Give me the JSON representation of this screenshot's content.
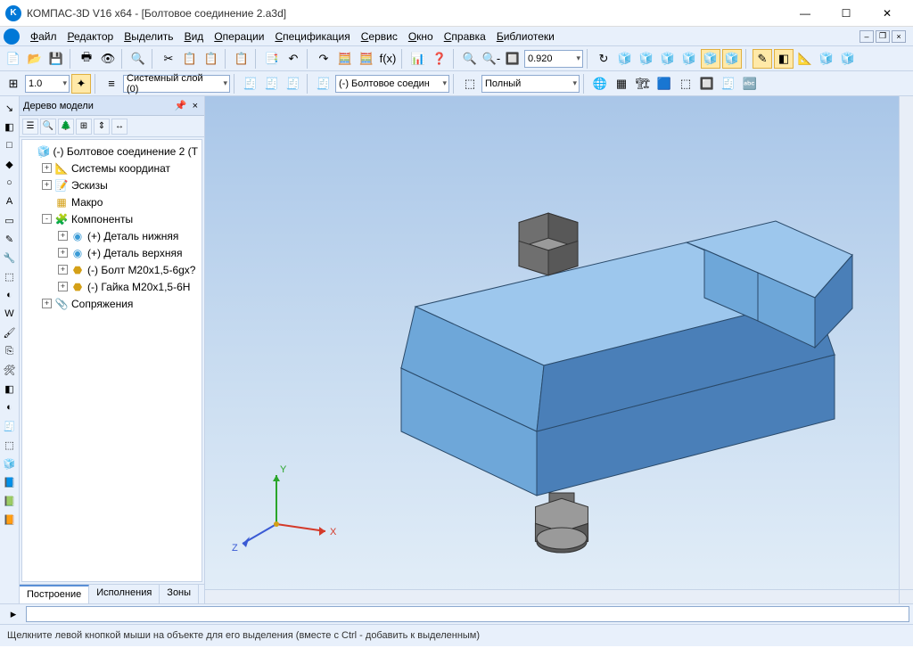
{
  "window": {
    "title": "КОМПАС-3D V16  x64 - [Болтовое соединение 2.a3d]",
    "min_glyph": "—",
    "max_glyph": "☐",
    "close_glyph": "✕"
  },
  "menu": {
    "items": [
      "Файл",
      "Редактор",
      "Выделить",
      "Вид",
      "Операции",
      "Спецификация",
      "Сервис",
      "Окно",
      "Справка",
      "Библиотеки"
    ]
  },
  "toolbar1": {
    "zoom_value": "0.920",
    "btns_a": [
      "📄",
      "📂",
      "💾",
      "🖶",
      "👁",
      "🔍",
      "✂",
      "📋",
      "📋",
      "📋",
      "📑",
      "↶",
      "↷",
      "🧮",
      "🧮",
      "f(x)",
      "📊",
      "❓",
      "↖"
    ],
    "btns_b": [
      "🔍",
      "🔍-",
      "🔲"
    ],
    "btns_c": [
      "↻",
      "🧊",
      "🧊",
      "🧊",
      "🧊",
      "🧊",
      "🧊"
    ],
    "btns_d": [
      "✎",
      "◧",
      "📐",
      "🧊",
      "🧊"
    ]
  },
  "toolbar2": {
    "v1": "1.0",
    "layer": "Системный слой (0)",
    "combo2": "(-) Болтовое соедин",
    "combo3": "Полный",
    "btns_a": [
      "⊞",
      "✦",
      "≡"
    ],
    "btns_b": [
      "🧾",
      "🧾",
      "🧾"
    ],
    "btns_c": [
      "🧾"
    ],
    "btns_d": [
      "⬚"
    ],
    "btns_e": [
      "🌐",
      "▦",
      "🏗",
      "🟦",
      "⬚",
      "🔲",
      "🧾",
      "🔤"
    ]
  },
  "leftStrip": [
    "↘",
    "◧",
    "□",
    "◆",
    "○",
    "A",
    "▭",
    "✎",
    "🔧",
    "⬚",
    "◐",
    "W",
    "🖌",
    "⎘",
    "🛠",
    "◧",
    "◐",
    "🧾",
    "⬚",
    "🧊",
    "📘",
    "📗",
    "📙"
  ],
  "panel": {
    "title": "Дерево модели",
    "tb": [
      "☰",
      "🔍",
      "🌲",
      "⊞",
      "⇕",
      "↔"
    ],
    "tabs": [
      "Построение",
      "Исполнения",
      "Зоны"
    ],
    "activeTab": 0
  },
  "tree": [
    {
      "depth": 0,
      "exp": "",
      "ico": "🧊",
      "label": "(-) Болтовое соединение 2 (Т",
      "icoColor": "#d4a017"
    },
    {
      "depth": 1,
      "exp": "+",
      "ico": "📐",
      "label": "Системы координат",
      "icoColor": "#4a7fc4"
    },
    {
      "depth": 1,
      "exp": "+",
      "ico": "📝",
      "label": "Эскизы",
      "icoColor": "#4a7fc4"
    },
    {
      "depth": 1,
      "exp": "",
      "ico": "▦",
      "label": "Макро",
      "icoColor": "#d4a017"
    },
    {
      "depth": 1,
      "exp": "-",
      "ico": "🧩",
      "label": "Компоненты",
      "icoColor": "#4a7fc4"
    },
    {
      "depth": 2,
      "exp": "+",
      "ico": "◉",
      "label": "(+) Деталь нижняя",
      "icoColor": "#3a9bd6"
    },
    {
      "depth": 2,
      "exp": "+",
      "ico": "◉",
      "label": "(+) Деталь верхняя",
      "icoColor": "#3a9bd6"
    },
    {
      "depth": 2,
      "exp": "+",
      "ico": "⬣",
      "label": "(-) Болт М20x1,5-6gx?",
      "icoColor": "#d4a017"
    },
    {
      "depth": 2,
      "exp": "+",
      "ico": "⬣",
      "label": "(-) Гайка М20x1,5-6Н",
      "icoColor": "#d4a017"
    },
    {
      "depth": 1,
      "exp": "+",
      "ico": "📎",
      "label": "Сопряжения",
      "icoColor": "#666"
    }
  ],
  "viewport": {
    "bg_top": "#a9c6e8",
    "bg_mid": "#c7dbf0",
    "bg_bot": "#e3eef8",
    "axis_x_color": "#d43a2a",
    "axis_y_color": "#2aa52a",
    "axis_z_color": "#3a5ad4",
    "axis_labels": {
      "x": "X",
      "y": "Y",
      "z": "Z"
    },
    "body_top": "#9dc7ed",
    "body_front": "#6ea7d9",
    "body_side": "#4a7fb8",
    "bolt_top": "#9a9a9a",
    "bolt_side": "#6f6f6f",
    "bolt_dark": "#585858"
  },
  "status": {
    "text": "Щелкните левой кнопкой мыши на объекте для его выделения (вместе с Ctrl - добавить к выделенным)"
  }
}
